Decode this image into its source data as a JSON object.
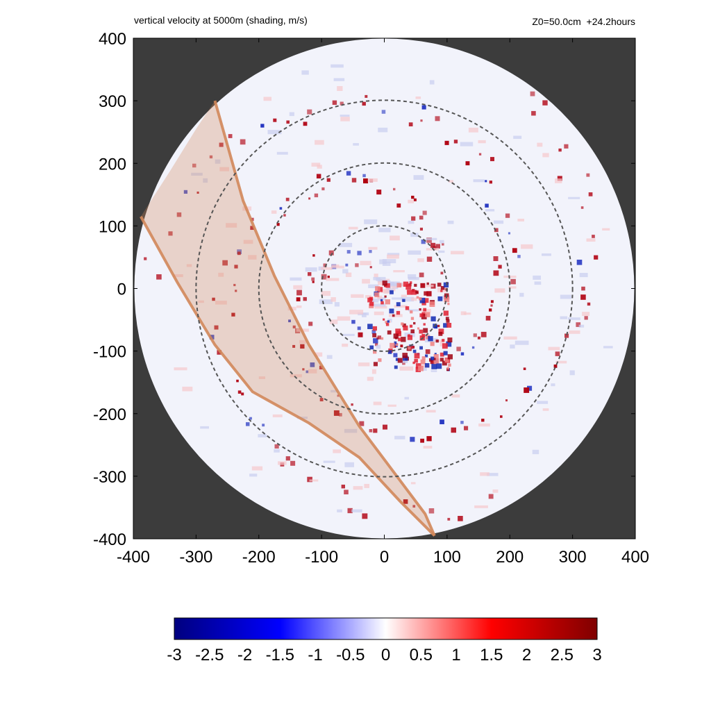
{
  "chart_data": {
    "type": "heatmap",
    "title": "vertical velocity at 5000m (shading, m/s)",
    "subtitle": "Z0=50.0cm  +24.2hours",
    "xlim": [
      -400,
      400
    ],
    "ylim": [
      -400,
      400
    ],
    "x_ticks": [
      -400,
      -300,
      -200,
      -100,
      0,
      100,
      200,
      300,
      400
    ],
    "y_ticks": [
      -400,
      -300,
      -200,
      -100,
      0,
      100,
      200,
      300,
      400
    ],
    "range_rings": [
      100,
      200,
      300
    ],
    "domain_radius": 400,
    "colorbar": {
      "min": -3,
      "max": 3,
      "ticks": [
        "-3",
        "-2.5",
        "-2",
        "-1.5",
        "-1",
        "-0.5",
        "0",
        "0.5",
        "1",
        "1.5",
        "2",
        "2.5",
        "3"
      ],
      "colors": [
        "#00007f",
        "#0000ff",
        "#ffffff",
        "#ff0000",
        "#7f0000"
      ]
    },
    "outside_color": "#3c3c3c",
    "band": {
      "color": "#d2875a",
      "left_edge": [
        [
          -388,
          115
        ],
        [
          -340,
          190
        ],
        [
          -300,
          255
        ],
        [
          -270,
          300
        ]
      ],
      "right_edge": [
        [
          -270,
          300
        ],
        [
          -225,
          140
        ],
        [
          -175,
          20
        ],
        [
          -120,
          -90
        ],
        [
          -40,
          -220
        ],
        [
          20,
          -300
        ],
        [
          65,
          -360
        ],
        [
          80,
          -395
        ]
      ],
      "lower_edge": [
        [
          -388,
          115
        ],
        [
          -330,
          10
        ],
        [
          -270,
          -90
        ],
        [
          -210,
          -165
        ],
        [
          -120,
          -215
        ],
        [
          -40,
          -270
        ],
        [
          25,
          -340
        ],
        [
          80,
          -395
        ]
      ]
    },
    "features": {
      "rainbands_dots_color": "#b00010",
      "core_center": [
        40,
        -60
      ]
    }
  }
}
